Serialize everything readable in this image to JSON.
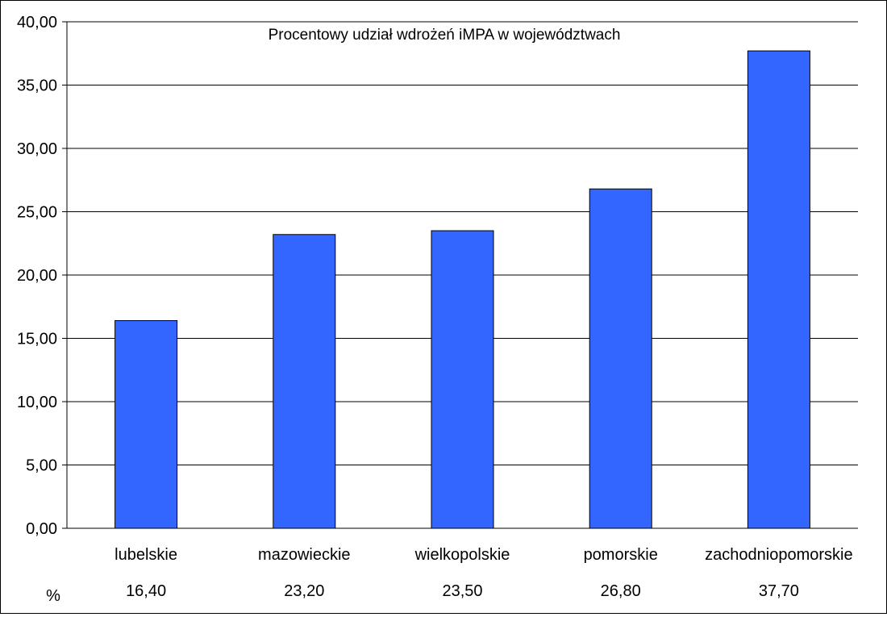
{
  "chart_data": {
    "type": "bar",
    "title": "Procentowy udział wdrożeń iMPA w województwach",
    "categories": [
      "lubelskie",
      "mazowieckie",
      "wielkopolskie",
      "pomorskie",
      "zachodniopomorskie"
    ],
    "values": [
      16.4,
      23.2,
      23.5,
      26.8,
      37.7
    ],
    "value_labels": [
      "16,40",
      "23,20",
      "23,50",
      "26,80",
      "37,70"
    ],
    "table_row_label": "%",
    "ylim": [
      0,
      40
    ],
    "yticks": [
      "0,00",
      "5,00",
      "10,00",
      "15,00",
      "20,00",
      "25,00",
      "30,00",
      "35,00",
      "40,00"
    ],
    "ytick_values": [
      0,
      5,
      10,
      15,
      20,
      25,
      30,
      35,
      40
    ],
    "grid": true,
    "legend": "none",
    "bar_color": "#3366ff",
    "bar_edge_color": "#000000"
  }
}
